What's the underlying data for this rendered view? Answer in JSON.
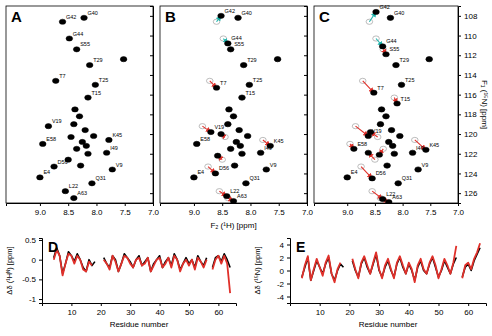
{
  "chart_data": [
    {
      "type": "scatter",
      "title": "A",
      "xlim": [
        9.6,
        7.0
      ],
      "xticks": [
        {
          "value": 9,
          "label": "9.0"
        },
        8.5,
        {
          "value": 8,
          "label": "8.0"
        },
        7.5,
        {
          "value": 7,
          "label": "7.0"
        }
      ],
      "ylim": [
        107,
        127
      ],
      "yticks": [
        108,
        110,
        112,
        114,
        116,
        118,
        120,
        122,
        124,
        126
      ],
      "tick_labels": "x",
      "series": [
        {
          "color": "#000000",
          "marker": "ellipse",
          "x": [
            8.6,
            8.22,
            8.48,
            8.35,
            7.52,
            8.12,
            8.72,
            8.02,
            8.15,
            8.85,
            8.95,
            7.78,
            7.82,
            8.75,
            7.72,
            9.0,
            8.08,
            8.55,
            8.4,
            8.3,
            8.4,
            8.2,
            8.45,
            8.25,
            8.35,
            8.15,
            8.5,
            8.28,
            8.38,
            8.18,
            8.05
          ],
          "y": [
            108.6,
            108.2,
            110.3,
            111.4,
            112.4,
            113.0,
            114.6,
            115.0,
            116.3,
            119.2,
            121.0,
            120.6,
            121.9,
            123.3,
            123.6,
            124.4,
            125.0,
            125.8,
            126.5,
            118.2,
            119.0,
            119.6,
            120.3,
            120.8,
            121.5,
            122.0,
            122.6,
            123.2,
            117.5,
            121.2,
            120.2
          ],
          "labels": [
            "G42",
            "G40",
            "G44",
            "S55",
            null,
            "T29",
            "T7",
            "T25",
            "T15",
            "V19",
            "E58",
            "K45",
            "I49",
            "D56",
            "V9",
            "E4",
            "Q31",
            "L22",
            "A63",
            null,
            null,
            null,
            null,
            null,
            null,
            null,
            null,
            null,
            null,
            null,
            null
          ]
        }
      ]
    },
    {
      "type": "scatter",
      "title": "B",
      "xlim": [
        9.6,
        7.0
      ],
      "xticks": [
        {
          "value": 9,
          "label": "9.0"
        },
        8.5,
        {
          "value": 8,
          "label": "8.0"
        },
        7.5,
        {
          "value": 7,
          "label": "7.0"
        }
      ],
      "ylim": [
        107,
        127
      ],
      "yticks": [
        108,
        110,
        112,
        114,
        116,
        118,
        120,
        122,
        124,
        126
      ],
      "tick_labels": "x",
      "x_label": "F₂ (¹H) [ppm]",
      "series": [
        {
          "color": "#a0a0a0",
          "marker": "open",
          "x": [
            8.6,
            8.22,
            8.48,
            8.35,
            7.52,
            8.12,
            8.72,
            8.02,
            8.15,
            8.85,
            8.95,
            7.78,
            7.82,
            8.75,
            7.72,
            9.0,
            8.08,
            8.55,
            8.4,
            8.3,
            8.4,
            8.2,
            8.45,
            8.25,
            8.35,
            8.15,
            8.5,
            8.28,
            8.38,
            8.18,
            8.05
          ],
          "y": [
            108.6,
            108.2,
            110.3,
            111.4,
            112.4,
            113.0,
            114.6,
            115.0,
            116.3,
            119.2,
            121.0,
            120.6,
            121.9,
            123.3,
            123.6,
            124.4,
            125.0,
            125.8,
            126.5,
            118.2,
            119.0,
            119.6,
            120.3,
            120.8,
            121.5,
            122.0,
            122.6,
            123.2,
            117.5,
            121.2,
            120.2
          ]
        },
        {
          "color": "#000000",
          "marker": "ellipse",
          "x": [
            8.52,
            8.22,
            8.4,
            8.35,
            7.52,
            8.12,
            8.6,
            8.02,
            8.15,
            8.7,
            8.95,
            7.65,
            7.82,
            8.62,
            7.72,
            9.0,
            8.08,
            8.42,
            8.3,
            8.3,
            8.4,
            8.2,
            8.52,
            8.25,
            8.35,
            8.15,
            8.58,
            8.28,
            8.38,
            8.18,
            8.05
          ],
          "y": [
            108.0,
            108.2,
            110.8,
            111.4,
            112.4,
            113.0,
            115.3,
            115.0,
            116.3,
            119.8,
            121.0,
            121.2,
            121.9,
            124.0,
            123.6,
            124.4,
            125.0,
            126.3,
            126.8,
            118.2,
            119.0,
            119.6,
            120.0,
            120.8,
            121.5,
            122.0,
            122.2,
            123.2,
            117.5,
            121.2,
            120.2
          ],
          "labels": [
            "G42",
            "G40",
            "G44",
            "S55",
            null,
            "T29",
            "T7",
            "T25",
            "T15",
            "V19",
            "E58",
            "K45",
            "I49",
            "D56",
            "V9",
            "E4",
            "Q31",
            "L22",
            "A63",
            null,
            null,
            null,
            null,
            null,
            null,
            null,
            null,
            null,
            null,
            null,
            null
          ],
          "colors": [
            "#1fb5ad",
            "#000000",
            "#1fb5ad",
            "#000000",
            "#000000",
            "#000000",
            "#e0302a",
            "#000000",
            "#000000",
            "#e0302a",
            "#000000",
            "#e0302a",
            "#000000",
            "#e0302a",
            "#000000",
            "#000000",
            "#000000",
            "#e0302a",
            "#e0302a",
            "#000000",
            "#000000",
            "#000000",
            "#e0302a",
            "#000000",
            "#000000",
            "#000000",
            "#e0302a",
            "#000000",
            "#000000",
            "#000000",
            "#000000"
          ]
        }
      ]
    },
    {
      "type": "scatter",
      "title": "C",
      "xlim": [
        9.6,
        7.0
      ],
      "xticks": [
        {
          "value": 9,
          "label": "9.0"
        },
        8.5,
        {
          "value": 8,
          "label": "8.0"
        },
        7.5,
        {
          "value": 7,
          "label": "7.0"
        }
      ],
      "ylim": [
        107,
        127
      ],
      "yticks": [
        108,
        110,
        112,
        114,
        116,
        118,
        120,
        122,
        124,
        126
      ],
      "y_label": "F₁ (¹⁵N) [ppm]",
      "series": [
        {
          "color": "#a0a0a0",
          "marker": "open",
          "x": [
            8.6,
            8.22,
            8.48,
            8.35,
            7.52,
            8.12,
            8.72,
            8.02,
            8.15,
            8.85,
            8.95,
            7.78,
            7.82,
            8.75,
            7.72,
            9.0,
            8.08,
            8.55,
            8.4,
            8.3,
            8.4,
            8.2,
            8.45,
            8.25,
            8.35,
            8.15,
            8.5,
            8.28,
            8.38,
            8.18,
            8.05
          ],
          "y": [
            108.6,
            108.2,
            110.3,
            111.4,
            112.4,
            113.0,
            114.6,
            115.0,
            116.3,
            119.2,
            121.0,
            120.6,
            121.9,
            123.3,
            123.6,
            124.4,
            125.0,
            125.8,
            126.5,
            118.2,
            119.0,
            119.6,
            120.3,
            120.8,
            121.5,
            122.0,
            122.6,
            123.2,
            117.5,
            121.2,
            120.2
          ]
        },
        {
          "color": "#000000",
          "marker": "ellipse",
          "x": [
            8.48,
            8.22,
            8.36,
            8.3,
            7.52,
            8.12,
            8.52,
            8.02,
            8.1,
            8.62,
            8.88,
            7.58,
            7.82,
            8.55,
            7.72,
            9.0,
            8.08,
            8.36,
            8.25,
            8.3,
            8.4,
            8.2,
            8.58,
            8.25,
            8.42,
            8.15,
            8.62,
            8.28,
            8.38,
            8.18,
            8.05
          ],
          "y": [
            107.6,
            108.2,
            111.1,
            111.9,
            112.4,
            113.0,
            115.8,
            115.0,
            116.9,
            120.2,
            121.5,
            121.6,
            121.9,
            124.5,
            123.6,
            124.4,
            125.0,
            126.6,
            126.9,
            118.2,
            119.0,
            119.6,
            119.8,
            120.8,
            122.1,
            122.0,
            121.9,
            123.2,
            117.5,
            121.2,
            120.2
          ],
          "labels": [
            "G42",
            "G40",
            "G44",
            "S55",
            null,
            "T29",
            "T7",
            "T25",
            "T15",
            "V19",
            "E58",
            "K45",
            "I49",
            "D56",
            "V9",
            "E4",
            "Q31",
            "L22",
            "A63",
            null,
            null,
            null,
            null,
            null,
            null,
            null,
            null,
            null,
            null,
            null,
            null
          ],
          "colors": [
            "#1fb5ad",
            "#000000",
            "#1fb5ad",
            "#e0302a",
            "#000000",
            "#000000",
            "#e0302a",
            "#000000",
            "#e0302a",
            "#e0302a",
            "#e0302a",
            "#e0302a",
            "#000000",
            "#e0302a",
            "#000000",
            "#000000",
            "#000000",
            "#e0302a",
            "#e0302a",
            "#000000",
            "#000000",
            "#000000",
            "#e0302a",
            "#000000",
            "#e0302a",
            "#000000",
            "#e0302a",
            "#000000",
            "#000000",
            "#000000",
            "#000000"
          ]
        }
      ]
    },
    {
      "type": "line",
      "title": "D",
      "x_label": "Residue number",
      "y_label": "Δδ (¹Hᴺ) [ppm]",
      "xlim": [
        0,
        66
      ],
      "xticks": [
        10,
        20,
        30,
        40,
        50,
        60
      ],
      "ylim": [
        -1.1,
        0.55
      ],
      "yticks": [
        -1,
        -0.5,
        0,
        0.5
      ],
      "x": [
        4,
        5,
        6,
        7,
        8,
        9,
        10,
        11,
        12,
        13,
        14,
        15,
        16,
        17,
        18,
        19,
        20,
        21,
        22,
        23,
        24,
        25,
        26,
        27,
        28,
        29,
        30,
        31,
        32,
        33,
        34,
        35,
        36,
        37,
        38,
        39,
        40,
        41,
        42,
        43,
        44,
        45,
        46,
        47,
        48,
        49,
        50,
        51,
        52,
        53,
        54,
        55,
        56,
        57,
        58,
        59,
        60,
        61,
        62,
        63,
        64
      ],
      "series": [
        {
          "color": "#000000",
          "values": [
            0.05,
            0.3,
            0.1,
            -0.35,
            -0.1,
            0.2,
            0.1,
            -0.05,
            0.15,
            0,
            -0.2,
            -0.3,
            0,
            -0.15,
            -0.05,
            null,
            null,
            0.05,
            -0.1,
            -0.2,
            0.1,
            0,
            -0.3,
            -0.1,
            0.15,
            0.05,
            -0.05,
            -0.2,
            0,
            0.1,
            -0.15,
            -0.05,
            0.05,
            -0.3,
            -0.1,
            0,
            0.1,
            -0.2,
            -0.05,
            0.05,
            -0.15,
            0.15,
            0,
            -0.25,
            -0.1,
            0.05,
            -0.1,
            0,
            -0.2,
            0.1,
            -0.05,
            -0.15,
            0.05,
            null,
            -0.2,
            0.05,
            0.1,
            -0.05,
            0.15,
            0,
            -0.2
          ]
        },
        {
          "color": "#e0302a",
          "values": [
            0,
            0.25,
            0.1,
            -0.4,
            -0.1,
            0.15,
            0.1,
            -0.1,
            0.1,
            0,
            -0.25,
            -0.3,
            -0.05,
            -0.15,
            null,
            null,
            null,
            0,
            -0.1,
            -0.25,
            0.1,
            -0.05,
            -0.3,
            -0.1,
            0.1,
            0.05,
            -0.1,
            -0.2,
            0,
            0.05,
            -0.15,
            -0.1,
            0.05,
            -0.3,
            -0.15,
            0,
            0.05,
            -0.2,
            -0.1,
            0.05,
            -0.2,
            0.1,
            0,
            -0.3,
            -0.1,
            0,
            -0.15,
            0,
            -0.25,
            0.05,
            -0.05,
            -0.2,
            0,
            null,
            -0.25,
            0,
            0.1,
            -0.1,
            0.1,
            -0.1,
            -0.85
          ]
        }
      ]
    },
    {
      "type": "line",
      "title": "E",
      "x_label": "Residue number",
      "y_label": "Δδ (¹⁵N) [ppm]",
      "xlim": [
        0,
        66
      ],
      "xticks": [
        10,
        20,
        30,
        40,
        50,
        60
      ],
      "ylim": [
        -5,
        5
      ],
      "yticks": [
        -4,
        -2,
        0,
        2,
        4
      ],
      "x": [
        4,
        5,
        6,
        7,
        8,
        9,
        10,
        11,
        12,
        13,
        14,
        15,
        16,
        17,
        18,
        19,
        20,
        21,
        22,
        23,
        24,
        25,
        26,
        27,
        28,
        29,
        30,
        31,
        32,
        33,
        34,
        35,
        36,
        37,
        38,
        39,
        40,
        41,
        42,
        43,
        44,
        45,
        46,
        47,
        48,
        49,
        50,
        51,
        52,
        53,
        54,
        55,
        56,
        57,
        58,
        59,
        60,
        61,
        62,
        63,
        64
      ],
      "series": [
        {
          "color": "#000000",
          "values": [
            -1,
            0.5,
            2,
            -1.5,
            0,
            1.5,
            0.5,
            -0.5,
            1,
            2,
            -0.5,
            -1.5,
            0,
            1,
            0.5,
            null,
            null,
            1.5,
            0,
            -1,
            1,
            2,
            0.5,
            -0.5,
            1,
            2.5,
            0,
            -1,
            0.5,
            1.5,
            0,
            -1,
            1,
            2,
            0.5,
            -0.5,
            1,
            0,
            -1.5,
            0.5,
            1.5,
            0,
            -0.5,
            1,
            2,
            0.5,
            -1,
            0,
            1.5,
            0.5,
            -0.5,
            1,
            2,
            null,
            -1,
            0.5,
            1,
            0,
            1.5,
            2.5,
            3.5
          ]
        },
        {
          "color": "#e0302a",
          "values": [
            -1.2,
            0.8,
            2.2,
            -1.5,
            0.2,
            1.8,
            0.5,
            -0.8,
            1.2,
            2.3,
            -0.5,
            -1.8,
            0.2,
            1.2,
            null,
            null,
            null,
            1.8,
            0.2,
            -1.2,
            1.2,
            2.2,
            0.8,
            -0.5,
            1.2,
            2.8,
            0.2,
            -1.2,
            0.8,
            1.8,
            0.2,
            -1.2,
            1.2,
            2.2,
            0.8,
            -0.5,
            1.2,
            0.2,
            -1.8,
            0.8,
            1.8,
            0.2,
            -0.5,
            1.2,
            2.2,
            0.8,
            -1.2,
            0.2,
            1.8,
            0.8,
            -0.5,
            1.2,
            3.8,
            null,
            -1.2,
            0.8,
            1.2,
            0.2,
            1.8,
            2.8,
            4.2
          ]
        }
      ]
    }
  ]
}
